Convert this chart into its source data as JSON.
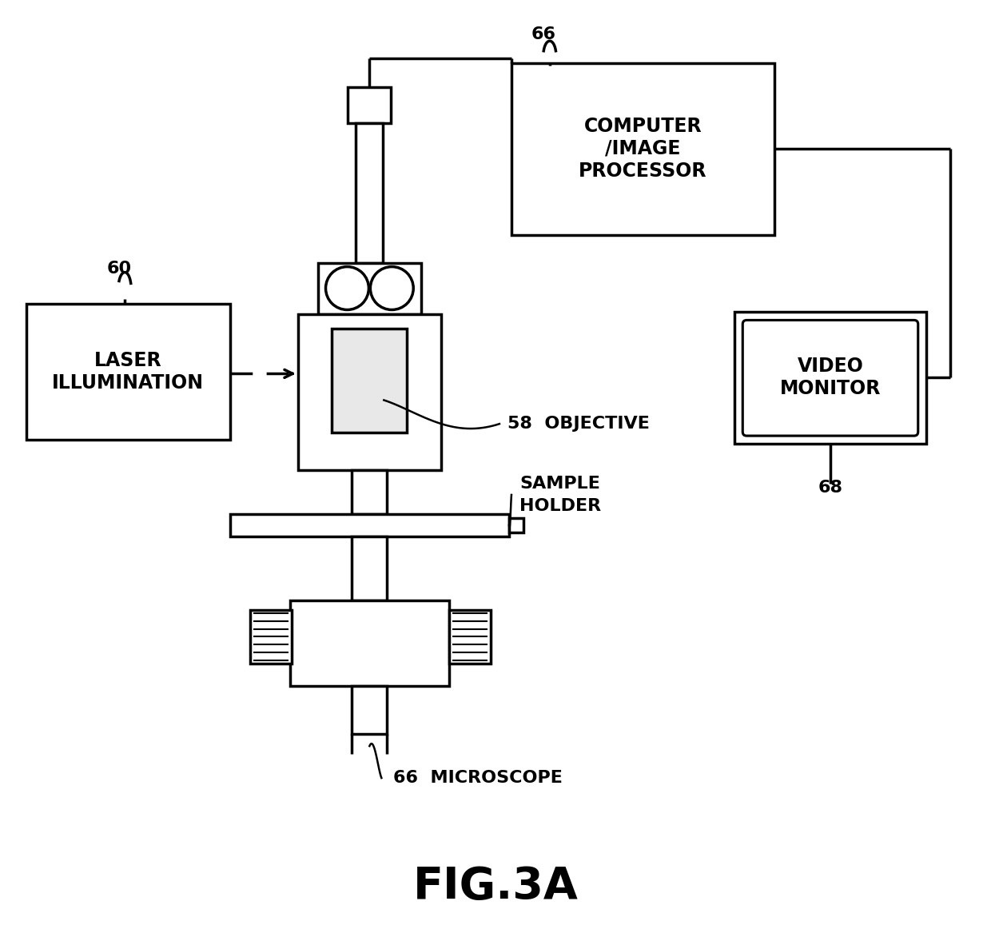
{
  "bg_color": "#ffffff",
  "lc": "#000000",
  "lw_main": 2.5,
  "fig_label": "FIG.3A",
  "fig_label_size": 40,
  "computer_text": "COMPUTER\n/IMAGE\nPROCESSOR",
  "laser_text": "LASER\nILLUMINATION",
  "video_text": "VIDEO\nMONITOR",
  "label_60": "60",
  "label_66_top": "66",
  "label_66_bottom": "66  MICROSCOPE",
  "label_68": "68",
  "label_58": "58  OBJECTIVE",
  "label_sample_1": "SAMPLE",
  "label_sample_2": "HOLDER",
  "text_fontsize": 17,
  "label_fontsize": 16
}
